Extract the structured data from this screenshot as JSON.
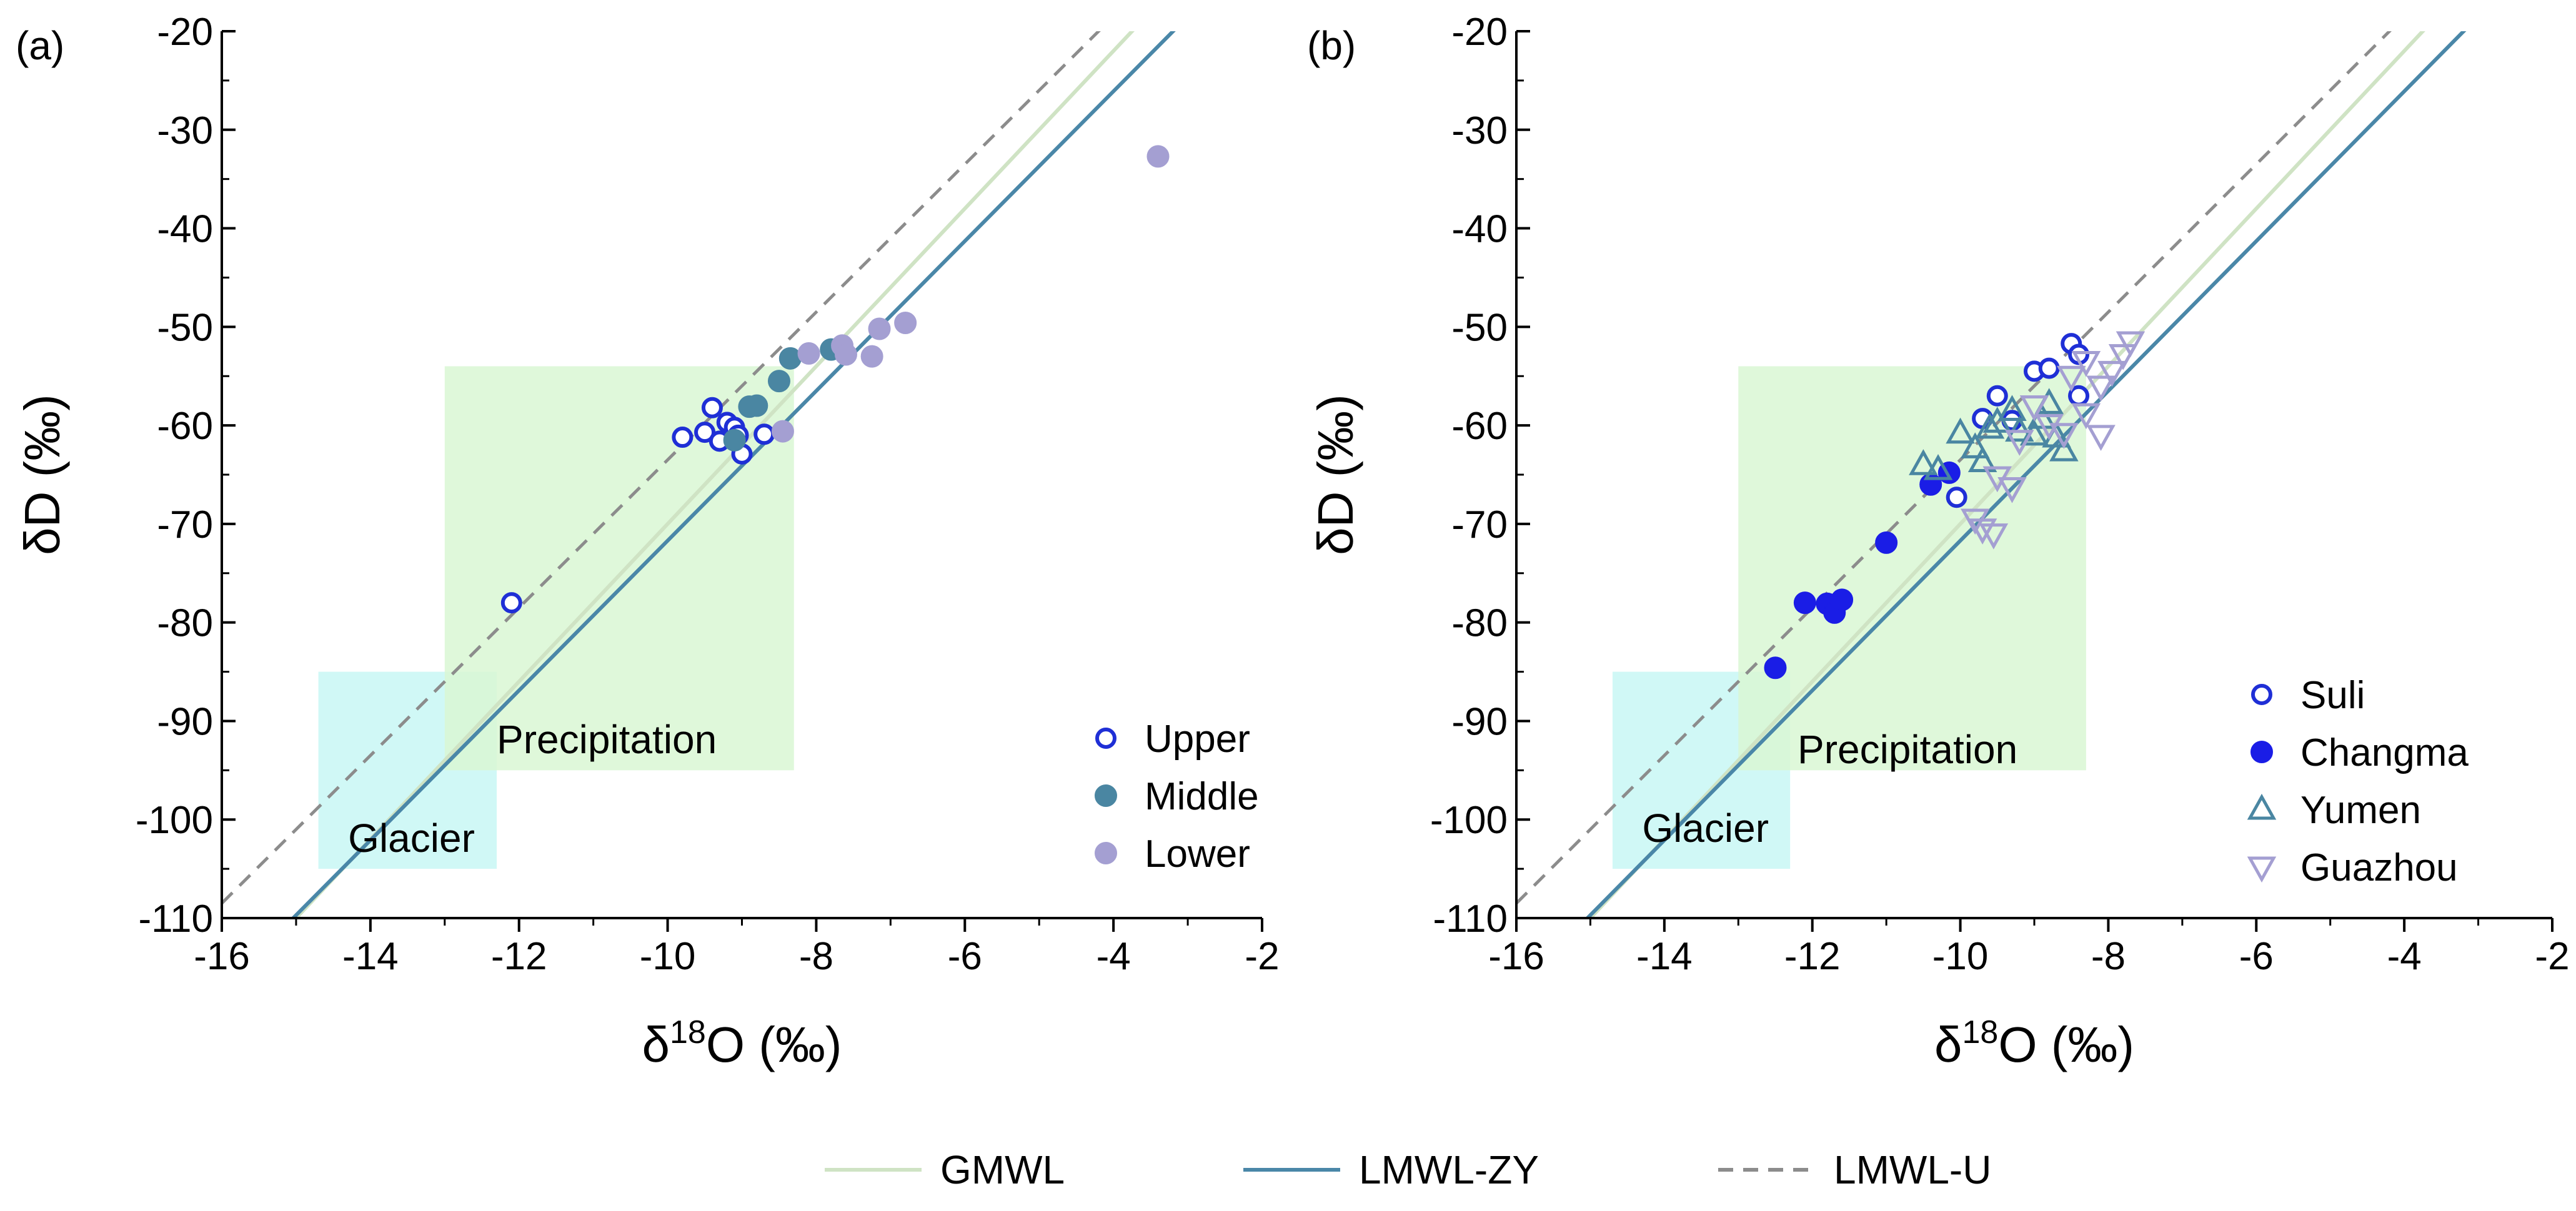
{
  "figure_legend": {
    "entries": [
      {
        "label": "GMWL",
        "color": "#cfe3c4",
        "dash": false
      },
      {
        "label": "LMWL-ZY",
        "color": "#4a87a8",
        "dash": false
      },
      {
        "label": "LMWL-U",
        "color": "#8c8c8c",
        "dash": true
      }
    ]
  },
  "chart_data": [
    {
      "type": "scatter",
      "panel_label": "(a)",
      "xlabel": "δ18O (‰)",
      "ylabel": "δD (‰)",
      "xlim": [
        -16,
        -2
      ],
      "ylim": [
        -110,
        -20
      ],
      "x_ticks": [
        -16,
        -14,
        -12,
        -10,
        -8,
        -6,
        -4,
        -2
      ],
      "y_ticks": [
        -20,
        -30,
        -40,
        -50,
        -60,
        -70,
        -80,
        -90,
        -100,
        -110
      ],
      "grid": false,
      "legend_position": "bottom-right",
      "regions": [
        {
          "label": "Glacier",
          "x": [
            -14.7,
            -12.3
          ],
          "y": [
            -105,
            -85
          ],
          "color": "#c8f7f4"
        },
        {
          "label": "Precipitation",
          "x": [
            -13.0,
            -8.3
          ],
          "y": [
            -95,
            -54
          ],
          "color": "#d9f7d3"
        }
      ],
      "lines": [
        {
          "name": "GMWL",
          "slope": 8,
          "intercept": 10,
          "color": "#cfe3c4",
          "dash": false
        },
        {
          "name": "LMWL-ZY",
          "slope": 7.6,
          "intercept": 4.3,
          "color": "#4a87a8",
          "dash": false
        },
        {
          "name": "LMWL-U",
          "slope": 7.5,
          "intercept": 11.5,
          "color": "#8c8c8c",
          "dash": true
        }
      ],
      "series": [
        {
          "name": "Upper",
          "marker": "open-circle",
          "color": "#1f2fd6",
          "points": [
            [
              -12.1,
              -78
            ],
            [
              -9.8,
              -61.2
            ],
            [
              -9.5,
              -60.7
            ],
            [
              -9.4,
              -58.2
            ],
            [
              -9.3,
              -61.6
            ],
            [
              -9.2,
              -59.7
            ],
            [
              -9.1,
              -60.2
            ],
            [
              -9.05,
              -61.0
            ],
            [
              -9.0,
              -62.9
            ],
            [
              -8.7,
              -60.9
            ]
          ]
        },
        {
          "name": "Middle",
          "marker": "filled-circle",
          "color": "#4a86a2",
          "points": [
            [
              -9.1,
              -61.5
            ],
            [
              -8.9,
              -58.1
            ],
            [
              -8.8,
              -58.0
            ],
            [
              -8.5,
              -55.5
            ],
            [
              -8.35,
              -53.2
            ],
            [
              -7.8,
              -52.3
            ]
          ]
        },
        {
          "name": "Lower",
          "marker": "filled-circle",
          "color": "#a49fd2",
          "points": [
            [
              -8.45,
              -60.6
            ],
            [
              -8.1,
              -52.7
            ],
            [
              -7.65,
              -51.9
            ],
            [
              -7.6,
              -52.8
            ],
            [
              -7.25,
              -53.0
            ],
            [
              -7.15,
              -50.2
            ],
            [
              -6.8,
              -49.6
            ],
            [
              -3.4,
              -32.7
            ]
          ]
        }
      ]
    },
    {
      "type": "scatter",
      "panel_label": "(b)",
      "xlabel": "δ18O (‰)",
      "ylabel": "δD (‰)",
      "xlim": [
        -16,
        -2
      ],
      "ylim": [
        -110,
        -20
      ],
      "x_ticks": [
        -16,
        -14,
        -12,
        -10,
        -8,
        -6,
        -4,
        -2
      ],
      "y_ticks": [
        -20,
        -30,
        -40,
        -50,
        -60,
        -70,
        -80,
        -90,
        -100,
        -110
      ],
      "grid": false,
      "legend_position": "bottom-right",
      "regions": [
        {
          "label": "Glacier",
          "x": [
            -14.7,
            -12.3
          ],
          "y": [
            -105,
            -85
          ],
          "color": "#c8f7f4"
        },
        {
          "label": "Precipitation",
          "x": [
            -13.0,
            -8.3
          ],
          "y": [
            -95,
            -54
          ],
          "color": "#d9f7d3"
        }
      ],
      "lines": [
        {
          "name": "GMWL",
          "slope": 8,
          "intercept": 10,
          "color": "#cfe3c4",
          "dash": false
        },
        {
          "name": "LMWL-ZY",
          "slope": 7.6,
          "intercept": 4.3,
          "color": "#4a87a8",
          "dash": false
        },
        {
          "name": "LMWL-U",
          "slope": 7.5,
          "intercept": 11.5,
          "color": "#8c8c8c",
          "dash": true
        }
      ],
      "series": [
        {
          "name": "Suli",
          "marker": "open-circle",
          "color": "#1f2fd6",
          "points": [
            [
              -10.05,
              -67.3
            ],
            [
              -9.7,
              -59.3
            ],
            [
              -9.5,
              -57.0
            ],
            [
              -9.3,
              -59.5
            ],
            [
              -9.0,
              -54.5
            ],
            [
              -8.8,
              -54.2
            ],
            [
              -8.5,
              -51.7
            ],
            [
              -8.4,
              -52.8
            ],
            [
              -8.4,
              -57.0
            ]
          ]
        },
        {
          "name": "Changma",
          "marker": "filled-circle",
          "color": "#1a1de6",
          "points": [
            [
              -12.5,
              -84.6
            ],
            [
              -12.1,
              -78.0
            ],
            [
              -11.8,
              -78.1
            ],
            [
              -11.7,
              -79.0
            ],
            [
              -11.6,
              -77.7
            ],
            [
              -11.0,
              -71.9
            ],
            [
              -10.4,
              -66.0
            ],
            [
              -10.15,
              -64.8
            ]
          ]
        },
        {
          "name": "Yumen",
          "marker": "open-triangle-up",
          "color": "#4a86a2",
          "points": [
            [
              -10.5,
              -64.0
            ],
            [
              -10.3,
              -64.5
            ],
            [
              -10.0,
              -60.8
            ],
            [
              -9.8,
              -62.3
            ],
            [
              -9.7,
              -63.7
            ],
            [
              -9.6,
              -60.3
            ],
            [
              -9.5,
              -59.7
            ],
            [
              -9.3,
              -58.5
            ],
            [
              -9.2,
              -60.6
            ],
            [
              -9.0,
              -61.0
            ],
            [
              -8.9,
              -59.3
            ],
            [
              -8.8,
              -57.8
            ],
            [
              -8.7,
              -61.2
            ],
            [
              -8.6,
              -62.6
            ]
          ]
        },
        {
          "name": "Guazhou",
          "marker": "open-triangle-down",
          "color": "#a49fd2",
          "points": [
            [
              -9.8,
              -69.5
            ],
            [
              -9.7,
              -70.5
            ],
            [
              -9.55,
              -71.0
            ],
            [
              -9.5,
              -65.2
            ],
            [
              -9.3,
              -66.3
            ],
            [
              -9.2,
              -61.5
            ],
            [
              -9.0,
              -58.0
            ],
            [
              -8.8,
              -59.9
            ],
            [
              -8.6,
              -60.8
            ],
            [
              -8.3,
              -58.8
            ],
            [
              -8.5,
              -55.0
            ],
            [
              -8.3,
              -53.5
            ],
            [
              -8.1,
              -56.0
            ],
            [
              -8.1,
              -61.0
            ],
            [
              -7.95,
              -54.5
            ],
            [
              -7.8,
              -52.8
            ],
            [
              -7.7,
              -51.5
            ]
          ]
        }
      ]
    }
  ]
}
